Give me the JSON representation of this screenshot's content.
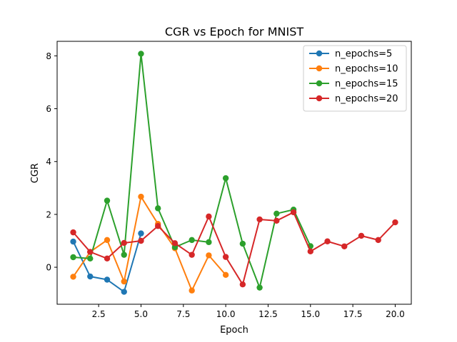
{
  "chart_data": {
    "type": "line",
    "title": "CGR vs Epoch for MNIST",
    "xlabel": "Epoch",
    "ylabel": "CGR",
    "xlim": [
      0.05,
      20.95
    ],
    "ylim": [
      -1.4,
      8.55
    ],
    "xticks": [
      2.5,
      5.0,
      7.5,
      10.0,
      12.5,
      15.0,
      17.5,
      20.0
    ],
    "xtick_labels": [
      "2.5",
      "5.0",
      "7.5",
      "10.0",
      "12.5",
      "15.0",
      "17.5",
      "20.0"
    ],
    "yticks": [
      0,
      2,
      4,
      6,
      8
    ],
    "ytick_labels": [
      "0",
      "2",
      "4",
      "6",
      "8"
    ],
    "grid": false,
    "legend_position": "top-right",
    "series": [
      {
        "name": "n_epochs=5",
        "color": "#1f77b4",
        "x": [
          1,
          2,
          3,
          4,
          5
        ],
        "y": [
          0.97,
          -0.35,
          -0.47,
          -0.93,
          1.28
        ]
      },
      {
        "name": "n_epochs=10",
        "color": "#ff7f0e",
        "x": [
          1,
          2,
          3,
          4,
          5,
          6,
          7,
          8,
          9,
          10
        ],
        "y": [
          -0.36,
          0.58,
          1.03,
          -0.54,
          2.67,
          1.64,
          0.72,
          -0.88,
          0.45,
          -0.29
        ]
      },
      {
        "name": "n_epochs=15",
        "color": "#2ca02c",
        "x": [
          1,
          2,
          3,
          4,
          5,
          6,
          7,
          8,
          9,
          10,
          11,
          12,
          13,
          14,
          15
        ],
        "y": [
          0.38,
          0.33,
          2.52,
          0.47,
          8.08,
          2.23,
          0.76,
          1.03,
          0.95,
          3.37,
          0.89,
          -0.77,
          2.03,
          2.18,
          0.8
        ]
      },
      {
        "name": "n_epochs=20",
        "color": "#d62728",
        "x": [
          1,
          2,
          3,
          4,
          5,
          6,
          7,
          8,
          9,
          10,
          11,
          12,
          13,
          14,
          15,
          16,
          17,
          18,
          19,
          20
        ],
        "y": [
          1.32,
          0.58,
          0.33,
          0.92,
          1.0,
          1.56,
          0.91,
          0.47,
          1.92,
          0.39,
          -0.65,
          1.81,
          1.76,
          2.08,
          0.6,
          0.98,
          0.79,
          1.19,
          1.03,
          1.7
        ]
      }
    ]
  }
}
